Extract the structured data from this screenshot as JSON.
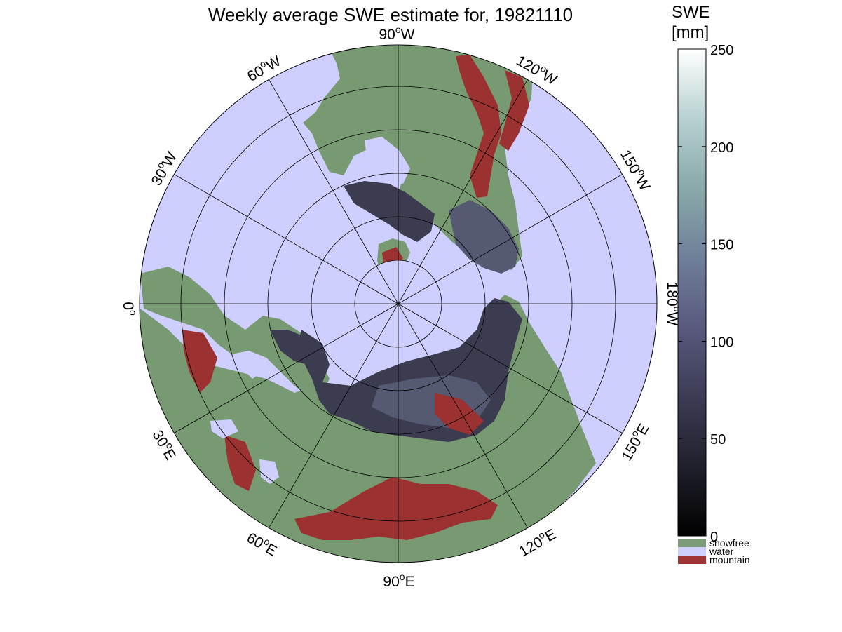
{
  "title": "Weekly average SWE estimate for, 19821110",
  "colorbar": {
    "title_line1": "SWE",
    "title_line2": "[mm]",
    "ticks": [
      "0",
      "50",
      "100",
      "150",
      "200",
      "250"
    ],
    "range": [
      0,
      250
    ],
    "gradient_colors": [
      "#000000",
      "#20202c",
      "#3c3c55",
      "#595a7e",
      "#6f7f99",
      "#88a9a9",
      "#b7d0d0",
      "#ffffff"
    ]
  },
  "legend": {
    "items": [
      {
        "label": "snowfree",
        "color": "#7b9c76"
      },
      {
        "label": "water",
        "color": "#cfcfff"
      },
      {
        "label": "mountain",
        "color": "#9e3433"
      }
    ]
  },
  "map": {
    "projection": "polar azimuthal (north pole centered)",
    "colors": {
      "water": "#cfcfff",
      "land": "#789a73",
      "snow": "#3c3c50",
      "snow_deep": "#555a72",
      "mountain": "#9b3130",
      "grid": "#000000"
    },
    "longitude_labels": [
      {
        "deg": "90",
        "dir": "W"
      },
      {
        "deg": "120",
        "dir": "W"
      },
      {
        "deg": "150",
        "dir": "W"
      },
      {
        "deg": "180",
        "dir": "W"
      },
      {
        "deg": "150",
        "dir": "E"
      },
      {
        "deg": "120",
        "dir": "E"
      },
      {
        "deg": "90",
        "dir": "E"
      },
      {
        "deg": "60",
        "dir": "E"
      },
      {
        "deg": "30",
        "dir": "E"
      },
      {
        "deg": "0",
        "dir": ""
      },
      {
        "deg": "30",
        "dir": "W"
      },
      {
        "deg": "60",
        "dir": "W"
      }
    ]
  }
}
